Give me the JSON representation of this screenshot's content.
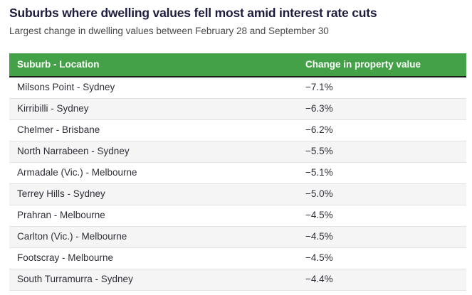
{
  "header": {
    "title": "Suburbs where dwelling values fell most amid interest rate cuts",
    "subtitle": "Largest change in dwelling values between February 28 and September 30"
  },
  "table": {
    "columns": [
      "Suburb - Location",
      "Change in property value"
    ],
    "rows": [
      {
        "suburb": "Milsons Point - Sydney",
        "change": "−7.1%"
      },
      {
        "suburb": "Kirribilli - Sydney",
        "change": "−6.3%"
      },
      {
        "suburb": "Chelmer - Brisbane",
        "change": "−6.2%"
      },
      {
        "suburb": "North Narrabeen - Sydney",
        "change": "−5.5%"
      },
      {
        "suburb": "Armadale (Vic.) - Melbourne",
        "change": "−5.1%"
      },
      {
        "suburb": "Terrey Hills - Sydney",
        "change": "−5.0%"
      },
      {
        "suburb": "Prahran - Melbourne",
        "change": "−4.5%"
      },
      {
        "suburb": "Carlton (Vic.) - Melbourne",
        "change": "−4.5%"
      },
      {
        "suburb": "Footscray - Melbourne",
        "change": "−4.5%"
      },
      {
        "suburb": "South Turramurra - Sydney",
        "change": "−4.4%"
      }
    ]
  },
  "colors": {
    "header_green": "#44a148",
    "header_border": "#1c1c1c",
    "row_alt": "#f5f5f5",
    "row_divider": "#e2e2e2",
    "title_text": "#1d1d3e",
    "subtitle_text": "#4a4a4a",
    "cell_text": "#2e2e38"
  },
  "chart_data": {
    "type": "table",
    "title": "Suburbs where dwelling values fell most amid interest rate cuts",
    "subtitle": "Largest change in dwelling values between February 28 and September 30",
    "columns": [
      "Suburb - Location",
      "Change in property value"
    ],
    "rows": [
      [
        "Milsons Point - Sydney",
        -7.1
      ],
      [
        "Kirribilli - Sydney",
        -6.3
      ],
      [
        "Chelmer - Brisbane",
        -6.2
      ],
      [
        "North Narrabeen - Sydney",
        -5.5
      ],
      [
        "Armadale (Vic.) - Melbourne",
        -5.1
      ],
      [
        "Terrey Hills - Sydney",
        -5.0
      ],
      [
        "Prahran - Melbourne",
        -4.5
      ],
      [
        "Carlton (Vic.) - Melbourne",
        -4.5
      ],
      [
        "Footscray - Melbourne",
        -4.5
      ],
      [
        "South Turramurra - Sydney",
        -4.4
      ]
    ],
    "units": "%",
    "layout_hints": {
      "header_background": "#44a148",
      "zebra_striping": true,
      "value_column_alignment": "left"
    }
  }
}
